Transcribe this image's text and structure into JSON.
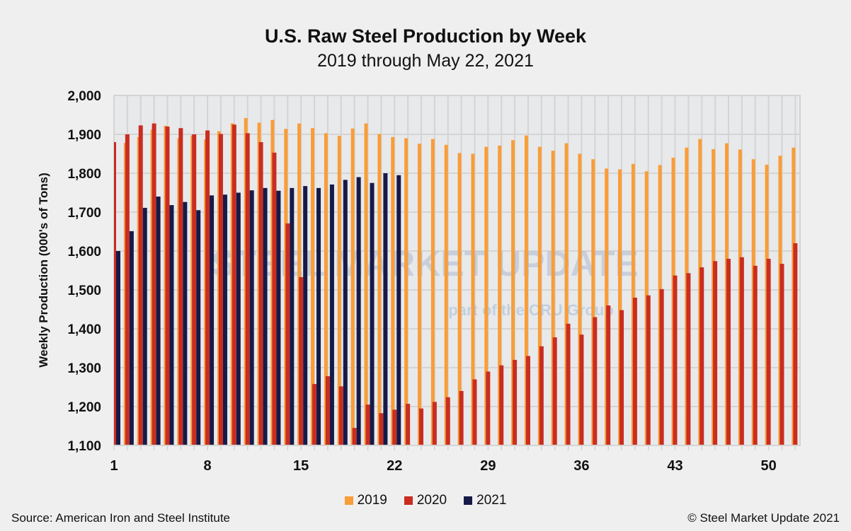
{
  "chart_data": {
    "type": "bar",
    "title": "U.S. Raw Steel Production by Week",
    "subtitle": "2019 through May 22, 2021",
    "ylabel": "Weekly Production (000's of Tons)",
    "xlabel": "",
    "ylim": [
      1100,
      2000
    ],
    "yticks": [
      "1,100",
      "1,200",
      "1,300",
      "1,400",
      "1,500",
      "1,600",
      "1,700",
      "1,800",
      "1,900",
      "2,000"
    ],
    "ytick_values": [
      1100,
      1200,
      1300,
      1400,
      1500,
      1600,
      1700,
      1800,
      1900,
      2000
    ],
    "xticks": [
      "1",
      "8",
      "15",
      "22",
      "29",
      "36",
      "43",
      "50"
    ],
    "xtick_values": [
      1,
      8,
      15,
      22,
      29,
      36,
      43,
      50
    ],
    "weeks": 52,
    "grid": true,
    "legend": "bottom",
    "series": [
      {
        "name": "2019",
        "color": "#f99d38",
        "values": [
          null,
          1878,
          1893,
          1912,
          1922,
          1890,
          1897,
          1887,
          1908,
          1928,
          1942,
          1930,
          1937,
          1914,
          1928,
          1916,
          1903,
          1896,
          1915,
          1928,
          1901,
          1893,
          1890,
          1876,
          1888,
          1873,
          1852,
          1850,
          1868,
          1871,
          1885,
          1897,
          1868,
          1858,
          1877,
          1850,
          1836,
          1812,
          1810,
          1824,
          1805,
          1821,
          1840,
          1866,
          1888,
          1862,
          1877,
          1861,
          1836,
          1822,
          1845,
          1866
        ]
      },
      {
        "name": "2020",
        "color": "#c92d20",
        "values": [
          1880,
          1900,
          1923,
          1928,
          1920,
          1916,
          1900,
          1910,
          1901,
          1925,
          1903,
          1880,
          1853,
          1671,
          1533,
          1258,
          1278,
          1252,
          1145,
          1205,
          1183,
          1192,
          1207,
          1195,
          1212,
          1224,
          1240,
          1270,
          1290,
          1306,
          1320,
          1330,
          1355,
          1378,
          1413,
          1385,
          1430,
          1460,
          1448,
          1480,
          1486,
          1502,
          1537,
          1543,
          1558,
          1574,
          1580,
          1584,
          1562,
          1580,
          1567,
          1620
        ]
      },
      {
        "name": "2021",
        "color": "#161a48",
        "values": [
          1600,
          1651,
          1711,
          1740,
          1718,
          1726,
          1705,
          1743,
          1745,
          1750,
          1756,
          1762,
          1755,
          1762,
          1767,
          1762,
          1771,
          1783,
          1790,
          1775,
          1800,
          1795
        ]
      }
    ]
  },
  "watermark": {
    "line1": "STEEL MARKET UPDATE",
    "line2": "part of the CRU Group"
  },
  "footer": {
    "source": "Source: American Iron and Steel Institute",
    "copyright": "© Steel Market Update 2021"
  }
}
